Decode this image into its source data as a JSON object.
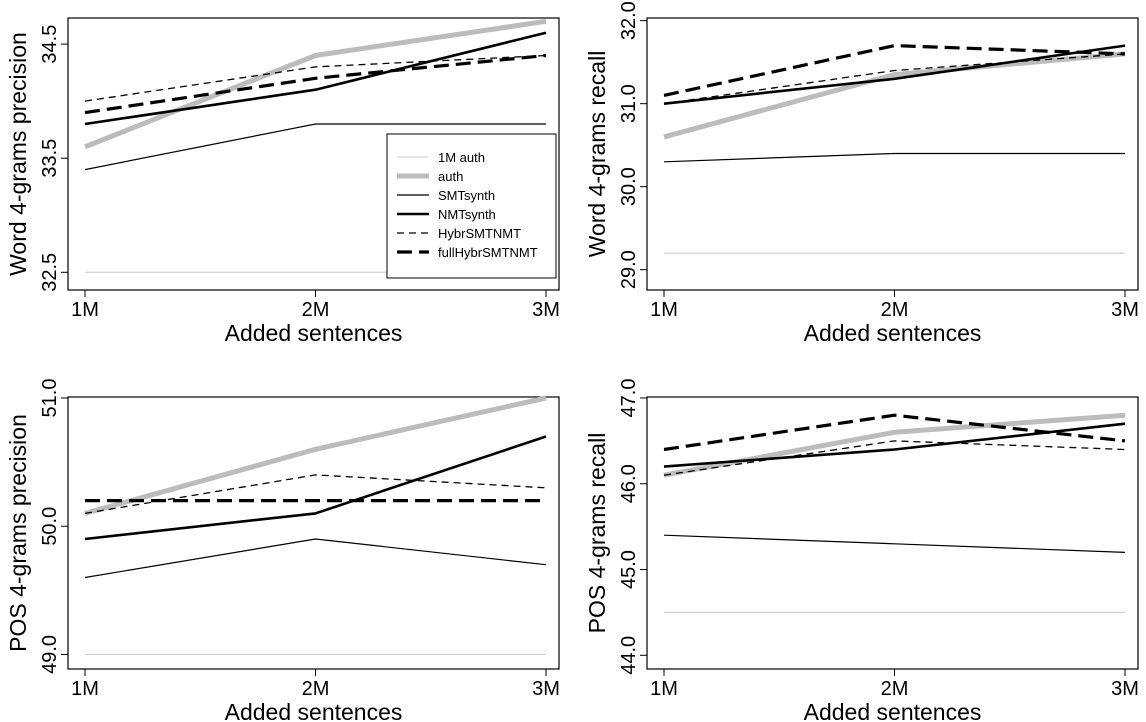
{
  "chart_data": [
    {
      "type": "line",
      "xlabel": "Added sentences",
      "ylabel": "Word 4-grams precision",
      "categories": [
        "1M",
        "2M",
        "3M"
      ],
      "yticks": [
        "32.5",
        "33.5",
        "34.5"
      ],
      "ylim": [
        32.45,
        34.72
      ],
      "grid": false,
      "legend_position": "bottom-right",
      "series": [
        {
          "name": "1M auth",
          "values": [
            32.5,
            32.5,
            32.5
          ]
        },
        {
          "name": "auth",
          "values": [
            33.6,
            34.4,
            34.7
          ]
        },
        {
          "name": "SMTsynth",
          "values": [
            33.4,
            33.8,
            33.8
          ]
        },
        {
          "name": "NMTsynth",
          "values": [
            33.8,
            34.1,
            34.6
          ]
        },
        {
          "name": "HybrSMTNMT",
          "values": [
            34.0,
            34.3,
            34.4
          ]
        },
        {
          "name": "fullHybrSMTNMT",
          "values": [
            33.9,
            34.2,
            34.4
          ]
        }
      ]
    },
    {
      "type": "line",
      "xlabel": "Added sentences",
      "ylabel": "Word 4-grams recall",
      "categories": [
        "1M",
        "2M",
        "3M"
      ],
      "yticks": [
        "29.0",
        "30.0",
        "31.0",
        "32.0"
      ],
      "ylim": [
        28.9,
        32.02
      ],
      "grid": false,
      "series": [
        {
          "name": "1M auth",
          "values": [
            29.2,
            29.2,
            29.2
          ]
        },
        {
          "name": "auth",
          "values": [
            30.6,
            31.35,
            31.6
          ]
        },
        {
          "name": "SMTsynth",
          "values": [
            30.3,
            30.4,
            30.4
          ]
        },
        {
          "name": "NMTsynth",
          "values": [
            31.0,
            31.3,
            31.7
          ]
        },
        {
          "name": "HybrSMTNMT",
          "values": [
            31.0,
            31.4,
            31.6
          ]
        },
        {
          "name": "fullHybrSMTNMT",
          "values": [
            31.1,
            31.7,
            31.6
          ]
        }
      ]
    },
    {
      "type": "line",
      "xlabel": "Added sentences",
      "ylabel": "POS 4-grams precision",
      "categories": [
        "1M",
        "2M",
        "3M"
      ],
      "yticks": [
        "49.0",
        "50.0",
        "51.0"
      ],
      "ylim": [
        48.98,
        51.0
      ],
      "grid": false,
      "series": [
        {
          "name": "1M auth",
          "values": [
            49.0,
            49.0,
            49.0
          ]
        },
        {
          "name": "auth",
          "values": [
            50.1,
            50.6,
            51.0
          ]
        },
        {
          "name": "SMTsynth",
          "values": [
            49.6,
            49.9,
            49.7
          ]
        },
        {
          "name": "NMTsynth",
          "values": [
            49.9,
            50.1,
            50.7
          ]
        },
        {
          "name": "HybrSMTNMT",
          "values": [
            50.1,
            50.4,
            50.3
          ]
        },
        {
          "name": "fullHybrSMTNMT",
          "values": [
            50.2,
            50.2,
            50.2
          ]
        }
      ]
    },
    {
      "type": "line",
      "xlabel": "Added sentences",
      "ylabel": "POS 4-grams recall",
      "categories": [
        "1M",
        "2M",
        "3M"
      ],
      "yticks": [
        "44.0",
        "45.0",
        "46.0",
        "47.0"
      ],
      "ylim": [
        43.98,
        47.0
      ],
      "grid": false,
      "series": [
        {
          "name": "1M auth",
          "values": [
            44.5,
            44.5,
            44.5
          ]
        },
        {
          "name": "auth",
          "values": [
            46.1,
            46.6,
            46.8
          ]
        },
        {
          "name": "SMTsynth",
          "values": [
            45.4,
            45.3,
            45.2
          ]
        },
        {
          "name": "NMTsynth",
          "values": [
            46.2,
            46.4,
            46.7
          ]
        },
        {
          "name": "HybrSMTNMT",
          "values": [
            46.1,
            46.5,
            46.4
          ]
        },
        {
          "name": "fullHybrSMTNMT",
          "values": [
            46.4,
            46.8,
            46.5
          ]
        }
      ]
    }
  ],
  "series_styles": {
    "1M auth": {
      "color": "#c8c8c8",
      "width": 1,
      "dash": ""
    },
    "auth": {
      "color": "#bcbcbc",
      "width": 5,
      "dash": ""
    },
    "SMTsynth": {
      "color": "#000000",
      "width": 1.2,
      "dash": ""
    },
    "NMTsynth": {
      "color": "#000000",
      "width": 2.6,
      "dash": ""
    },
    "HybrSMTNMT": {
      "color": "#000000",
      "width": 1.3,
      "dash": "7,5"
    },
    "fullHybrSMTNMT": {
      "color": "#000000",
      "width": 3.2,
      "dash": "15,7"
    }
  }
}
